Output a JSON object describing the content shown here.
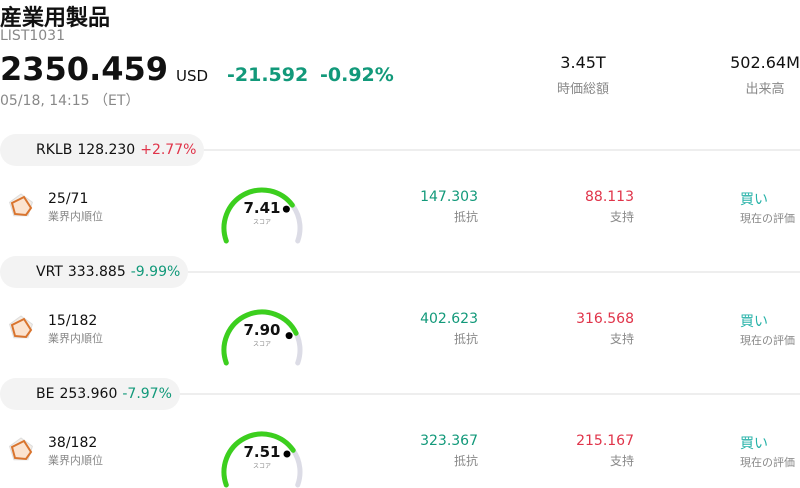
{
  "header": {
    "title": "産業用製品",
    "code": "LIST1031",
    "price": "2350.459",
    "currency": "USD",
    "change": "-21.592",
    "change_percent": "-0.92%",
    "timestamp": "05/18, 14:15 （ET）",
    "stats": [
      {
        "value": "3.45T",
        "label": "時価総額"
      },
      {
        "value": "502.64M",
        "label": "出来高"
      }
    ]
  },
  "stocks": [
    {
      "ticker": "RKLB",
      "price": "128.230",
      "change": "+2.77%",
      "rank": "25/71",
      "rank_label": "業界内順位",
      "score": "7.41",
      "score_label": "スコア",
      "resistance": "147.303",
      "resistance_label": "抵抗",
      "support": "88.113",
      "support_label": "支持",
      "rating": "買い",
      "rating_label": "現在の評価"
    },
    {
      "ticker": "VRT",
      "price": "333.885",
      "change": "-9.99%",
      "rank": "15/182",
      "rank_label": "業界内順位",
      "score": "7.90",
      "score_label": "スコア",
      "resistance": "402.623",
      "resistance_label": "抵抗",
      "support": "316.568",
      "support_label": "支持",
      "rating": "買い",
      "rating_label": "現在の評価"
    },
    {
      "ticker": "BE",
      "price": "253.960",
      "change": "-7.97%",
      "rank": "38/182",
      "rank_label": "業界内順位",
      "score": "7.51",
      "score_label": "スコア",
      "resistance": "323.367",
      "resistance_label": "抵抗",
      "support": "215.167",
      "support_label": "支持",
      "rating": "買い",
      "rating_label": "現在の評価"
    }
  ]
}
